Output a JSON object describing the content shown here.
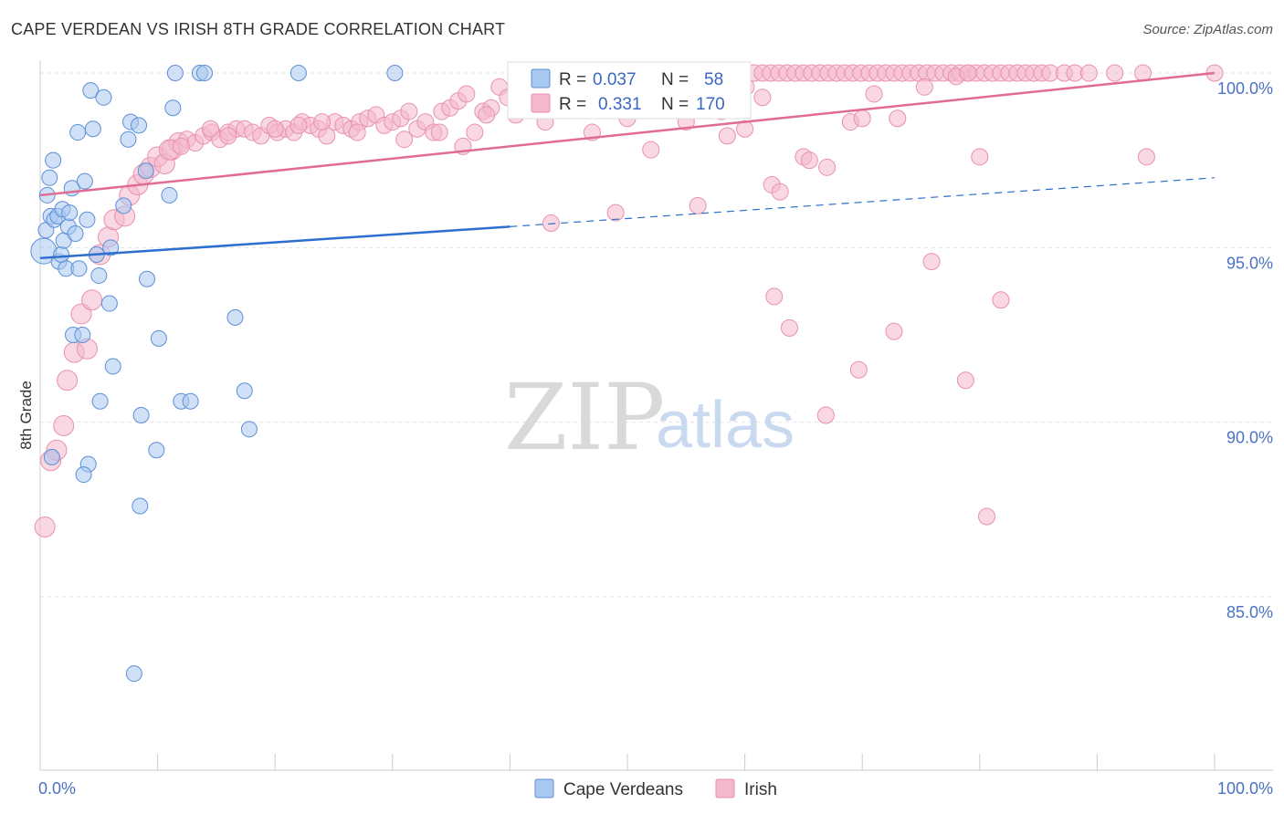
{
  "title": "CAPE VERDEAN VS IRISH 8TH GRADE CORRELATION CHART",
  "source": "Source: ZipAtlas.com",
  "watermark": {
    "zip": "ZIP",
    "atlas": "atlas"
  },
  "colors": {
    "blue_fill": "#a9c8f0",
    "blue_stroke": "#5b8fd6",
    "blue_line": "#2d6fd0",
    "pink_fill": "#f4b8cc",
    "pink_stroke": "#e891ae",
    "pink_line": "#e06b94",
    "grid": "#e3e3e3",
    "axis_text": "#4a72c4"
  },
  "chart_data": {
    "type": "scatter",
    "title": "CAPE VERDEAN VS IRISH 8TH GRADE CORRELATION CHART",
    "xlabel": "",
    "ylabel": "8th Grade",
    "xlim": [
      0,
      100
    ],
    "ylim": [
      80.5,
      100.8
    ],
    "x_tick_labels": [
      "0.0%",
      "100.0%"
    ],
    "y_ticks": [
      85,
      90,
      95,
      100
    ],
    "y_tick_labels": [
      "85.0%",
      "90.0%",
      "95.0%",
      "100.0%"
    ],
    "grid": true,
    "legend_top": {
      "rows": [
        {
          "r_label": "R =",
          "r_value": "0.037",
          "n_label": "N =",
          "n_value": "58"
        },
        {
          "r_label": "R =",
          "r_value": "0.331",
          "n_label": "N =",
          "n_value": "170"
        }
      ]
    },
    "legend_bottom": [
      "Cape Verdeans",
      "Irish"
    ],
    "series": [
      {
        "name": "Cape Verdeans",
        "trend": {
          "x0": 0,
          "y0": 94.7,
          "x1": 40,
          "y1": 95.6,
          "dash_to_x": 100,
          "dash_to_y": 97.0
        },
        "points": [
          [
            0.3,
            94.9
          ],
          [
            0.5,
            95.5
          ],
          [
            0.6,
            96.5
          ],
          [
            0.8,
            97.0
          ],
          [
            0.9,
            95.9
          ],
          [
            1.1,
            97.5
          ],
          [
            1.2,
            95.8
          ],
          [
            1.5,
            95.9
          ],
          [
            1.6,
            94.6
          ],
          [
            1.8,
            94.8
          ],
          [
            1.9,
            96.1
          ],
          [
            2.0,
            95.2
          ],
          [
            2.2,
            94.4
          ],
          [
            2.4,
            95.6
          ],
          [
            2.5,
            96.0
          ],
          [
            2.7,
            96.7
          ],
          [
            2.8,
            92.5
          ],
          [
            3.0,
            95.4
          ],
          [
            3.2,
            98.3
          ],
          [
            3.3,
            94.4
          ],
          [
            3.6,
            92.5
          ],
          [
            3.8,
            96.9
          ],
          [
            4.0,
            95.8
          ],
          [
            4.1,
            88.8
          ],
          [
            4.3,
            99.5
          ],
          [
            4.5,
            98.4
          ],
          [
            4.8,
            94.8
          ],
          [
            5.0,
            94.2
          ],
          [
            5.1,
            90.6
          ],
          [
            5.4,
            99.3
          ],
          [
            5.9,
            93.4
          ],
          [
            6.2,
            91.6
          ],
          [
            7.1,
            96.2
          ],
          [
            7.5,
            98.1
          ],
          [
            7.7,
            98.6
          ],
          [
            8.4,
            98.5
          ],
          [
            8.5,
            87.6
          ],
          [
            8.6,
            90.2
          ],
          [
            9.0,
            97.2
          ],
          [
            9.1,
            94.1
          ],
          [
            8.0,
            82.8
          ],
          [
            9.9,
            89.2
          ],
          [
            10.1,
            92.4
          ],
          [
            11.0,
            96.5
          ],
          [
            11.3,
            99.0
          ],
          [
            11.5,
            100.0
          ],
          [
            12.0,
            90.6
          ],
          [
            12.8,
            90.6
          ],
          [
            13.6,
            100.0
          ],
          [
            14.0,
            100.0
          ],
          [
            16.6,
            93.0
          ],
          [
            17.4,
            90.9
          ],
          [
            17.8,
            89.8
          ],
          [
            22.0,
            100.0
          ],
          [
            30.2,
            100.0
          ],
          [
            1.0,
            89.0
          ],
          [
            3.7,
            88.5
          ],
          [
            6.0,
            95.0
          ]
        ]
      },
      {
        "name": "Irish",
        "trend": {
          "x0": 0,
          "y0": 96.5,
          "x1": 100,
          "y1": 100.0
        },
        "points": [
          [
            0.4,
            87.0
          ],
          [
            0.9,
            88.9
          ],
          [
            1.4,
            89.2
          ],
          [
            2.0,
            89.9
          ],
          [
            2.3,
            91.2
          ],
          [
            2.9,
            92.0
          ],
          [
            3.5,
            93.1
          ],
          [
            4.0,
            92.1
          ],
          [
            4.4,
            93.5
          ],
          [
            5.1,
            94.8
          ],
          [
            5.8,
            95.3
          ],
          [
            6.3,
            95.8
          ],
          [
            7.2,
            95.9
          ],
          [
            7.6,
            96.5
          ],
          [
            8.3,
            96.8
          ],
          [
            8.8,
            97.1
          ],
          [
            9.4,
            97.3
          ],
          [
            10.0,
            97.6
          ],
          [
            10.6,
            97.4
          ],
          [
            11.2,
            97.8
          ],
          [
            11.8,
            98.0
          ],
          [
            12.5,
            98.1
          ],
          [
            13.2,
            98.0
          ],
          [
            13.9,
            98.2
          ],
          [
            14.6,
            98.3
          ],
          [
            15.3,
            98.1
          ],
          [
            16.0,
            98.3
          ],
          [
            16.7,
            98.4
          ],
          [
            17.4,
            98.4
          ],
          [
            18.1,
            98.3
          ],
          [
            18.8,
            98.2
          ],
          [
            19.5,
            98.5
          ],
          [
            20.2,
            98.3
          ],
          [
            20.9,
            98.4
          ],
          [
            21.6,
            98.3
          ],
          [
            22.3,
            98.6
          ],
          [
            23.0,
            98.5
          ],
          [
            23.7,
            98.4
          ],
          [
            24.4,
            98.2
          ],
          [
            25.1,
            98.6
          ],
          [
            25.8,
            98.5
          ],
          [
            26.5,
            98.4
          ],
          [
            27.2,
            98.6
          ],
          [
            27.9,
            98.7
          ],
          [
            28.6,
            98.8
          ],
          [
            29.3,
            98.5
          ],
          [
            30.0,
            98.6
          ],
          [
            30.7,
            98.7
          ],
          [
            31.4,
            98.9
          ],
          [
            32.1,
            98.4
          ],
          [
            32.8,
            98.6
          ],
          [
            33.5,
            98.3
          ],
          [
            34.2,
            98.9
          ],
          [
            34.9,
            99.0
          ],
          [
            35.6,
            99.2
          ],
          [
            36.3,
            99.4
          ],
          [
            37.0,
            98.3
          ],
          [
            37.7,
            98.9
          ],
          [
            38.4,
            99.0
          ],
          [
            39.1,
            99.6
          ],
          [
            39.8,
            99.3
          ],
          [
            40.5,
            98.8
          ],
          [
            41.2,
            99.1
          ],
          [
            41.9,
            99.5
          ],
          [
            42.6,
            100.0
          ],
          [
            43.3,
            99.7
          ],
          [
            44.0,
            99.2
          ],
          [
            44.7,
            100.0
          ],
          [
            45.4,
            99.8
          ],
          [
            46.1,
            100.0
          ],
          [
            46.8,
            99.6
          ],
          [
            47.5,
            100.0
          ],
          [
            48.2,
            100.0
          ],
          [
            48.9,
            99.9
          ],
          [
            49.6,
            99.4
          ],
          [
            50.3,
            100.0
          ],
          [
            51.0,
            100.0
          ],
          [
            51.7,
            99.3
          ],
          [
            52.4,
            100.0
          ],
          [
            53.1,
            100.0
          ],
          [
            53.8,
            99.5
          ],
          [
            54.5,
            100.0
          ],
          [
            55.2,
            100.0
          ],
          [
            55.9,
            100.0
          ],
          [
            56.6,
            100.0
          ],
          [
            57.3,
            99.8
          ],
          [
            58.0,
            100.0
          ],
          [
            58.7,
            100.0
          ],
          [
            59.4,
            100.0
          ],
          [
            60.1,
            99.6
          ],
          [
            60.8,
            100.0
          ],
          [
            61.5,
            100.0
          ],
          [
            62.2,
            100.0
          ],
          [
            62.9,
            100.0
          ],
          [
            63.6,
            100.0
          ],
          [
            64.3,
            100.0
          ],
          [
            65.0,
            100.0
          ],
          [
            65.7,
            100.0
          ],
          [
            66.4,
            100.0
          ],
          [
            67.1,
            100.0
          ],
          [
            67.8,
            100.0
          ],
          [
            68.5,
            100.0
          ],
          [
            69.2,
            100.0
          ],
          [
            69.9,
            100.0
          ],
          [
            70.6,
            100.0
          ],
          [
            71.3,
            100.0
          ],
          [
            72.0,
            100.0
          ],
          [
            72.7,
            100.0
          ],
          [
            73.4,
            100.0
          ],
          [
            74.1,
            100.0
          ],
          [
            74.8,
            100.0
          ],
          [
            75.5,
            100.0
          ],
          [
            76.2,
            100.0
          ],
          [
            76.9,
            100.0
          ],
          [
            77.6,
            100.0
          ],
          [
            78.3,
            100.0
          ],
          [
            79.0,
            100.0
          ],
          [
            79.7,
            100.0
          ],
          [
            80.4,
            100.0
          ],
          [
            81.1,
            100.0
          ],
          [
            81.8,
            100.0
          ],
          [
            82.5,
            100.0
          ],
          [
            83.2,
            100.0
          ],
          [
            83.9,
            100.0
          ],
          [
            84.6,
            100.0
          ],
          [
            85.3,
            100.0
          ],
          [
            86.0,
            100.0
          ],
          [
            87.2,
            100.0
          ],
          [
            88.1,
            100.0
          ],
          [
            89.3,
            100.0
          ],
          [
            91.5,
            100.0
          ],
          [
            93.9,
            100.0
          ],
          [
            100.0,
            100.0
          ],
          [
            11.0,
            97.8
          ],
          [
            12.0,
            97.9
          ],
          [
            14.5,
            98.4
          ],
          [
            16.0,
            98.2
          ],
          [
            20.0,
            98.4
          ],
          [
            22.0,
            98.5
          ],
          [
            24.0,
            98.6
          ],
          [
            27.0,
            98.3
          ],
          [
            31.0,
            98.1
          ],
          [
            34.0,
            98.3
          ],
          [
            36.0,
            97.9
          ],
          [
            38.0,
            98.8
          ],
          [
            43.0,
            98.6
          ],
          [
            47.0,
            98.3
          ],
          [
            50.0,
            98.7
          ],
          [
            52.0,
            97.8
          ],
          [
            55.0,
            98.6
          ],
          [
            58.0,
            98.9
          ],
          [
            58.5,
            98.2
          ],
          [
            60.0,
            98.4
          ],
          [
            61.5,
            99.3
          ],
          [
            62.3,
            96.8
          ],
          [
            63.0,
            96.6
          ],
          [
            65.0,
            97.6
          ],
          [
            65.5,
            97.5
          ],
          [
            67.0,
            97.3
          ],
          [
            69.0,
            98.6
          ],
          [
            70.0,
            98.7
          ],
          [
            71.0,
            99.4
          ],
          [
            73.0,
            98.7
          ],
          [
            75.3,
            99.6
          ],
          [
            78.0,
            99.9
          ],
          [
            79.0,
            100.0
          ],
          [
            80.0,
            97.6
          ],
          [
            43.5,
            95.7
          ],
          [
            49.0,
            96.0
          ],
          [
            56.0,
            96.2
          ],
          [
            62.5,
            93.6
          ],
          [
            63.8,
            92.7
          ],
          [
            66.9,
            90.2
          ],
          [
            69.7,
            91.5
          ],
          [
            72.7,
            92.6
          ],
          [
            75.9,
            94.6
          ],
          [
            78.8,
            91.2
          ],
          [
            80.6,
            87.3
          ],
          [
            81.8,
            93.5
          ],
          [
            94.2,
            97.6
          ]
        ]
      }
    ]
  }
}
